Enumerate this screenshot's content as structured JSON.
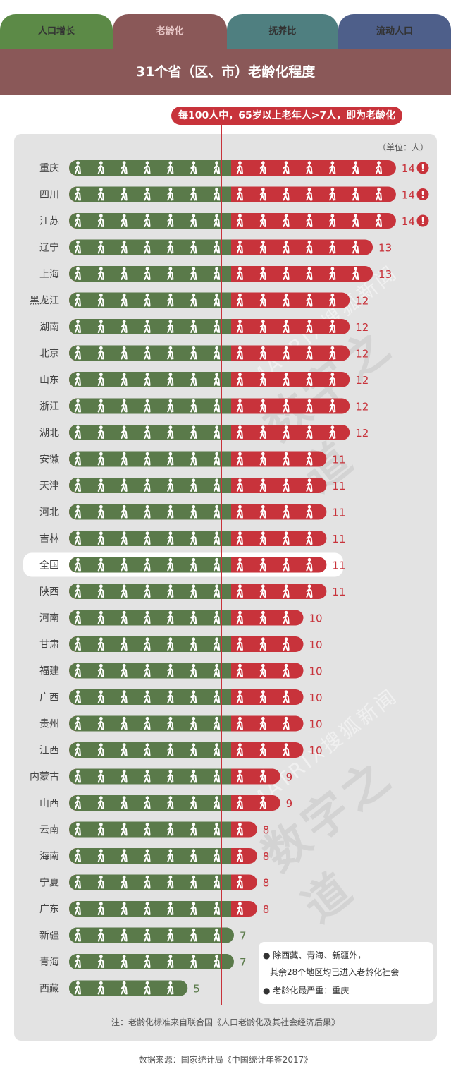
{
  "tabs": [
    {
      "label": "人口增长",
      "color": "#5c8a47"
    },
    {
      "label": "老龄化",
      "color": "#8a5858"
    },
    {
      "label": "抚养比",
      "color": "#4f7f80"
    },
    {
      "label": "流动人口",
      "color": "#4e5f8a"
    }
  ],
  "banner_title": "31个省（区、市）老龄化程度",
  "threshold_note": "每100人中，65岁以上老年人>7人，即为老龄化",
  "unit": "（单位：人）",
  "footnote": "注：老龄化标准来自联合国《人口老龄化及其社会经济后果》",
  "source": "数据来源：国家统计局《中国统计年鉴2017》",
  "legend": {
    "line1": "除西藏、青海、新疆外，",
    "line2": "其余28个地区均已进入老龄化社会",
    "line3": "老龄化最严重：重庆"
  },
  "watermark": {
    "brand": "MATRIX搜狐新闻",
    "name": "数字之道"
  },
  "colors": {
    "green": "#5a7a4a",
    "red": "#c8333b",
    "panel": "#e3e3e3"
  },
  "icon": "walking-elder-icon",
  "warning_icon": "exclamation-icon",
  "chart_data": {
    "type": "bar",
    "threshold": 7,
    "categories": [
      "重庆",
      "四川",
      "江苏",
      "辽宁",
      "上海",
      "黑龙江",
      "湖南",
      "北京",
      "山东",
      "浙江",
      "湖北",
      "安徽",
      "天津",
      "河北",
      "吉林",
      "全国",
      "陕西",
      "河南",
      "甘肃",
      "福建",
      "广西",
      "贵州",
      "江西",
      "内蒙古",
      "山西",
      "云南",
      "海南",
      "宁夏",
      "广东",
      "新疆",
      "青海",
      "西藏"
    ],
    "values": [
      14,
      14,
      14,
      13,
      13,
      12,
      12,
      12,
      12,
      12,
      12,
      11,
      11,
      11,
      11,
      11,
      11,
      10,
      10,
      10,
      10,
      10,
      10,
      9,
      9,
      8,
      8,
      8,
      8,
      7,
      7,
      5
    ],
    "warning": [
      "重庆",
      "四川",
      "江苏"
    ],
    "highlight": "全国"
  }
}
